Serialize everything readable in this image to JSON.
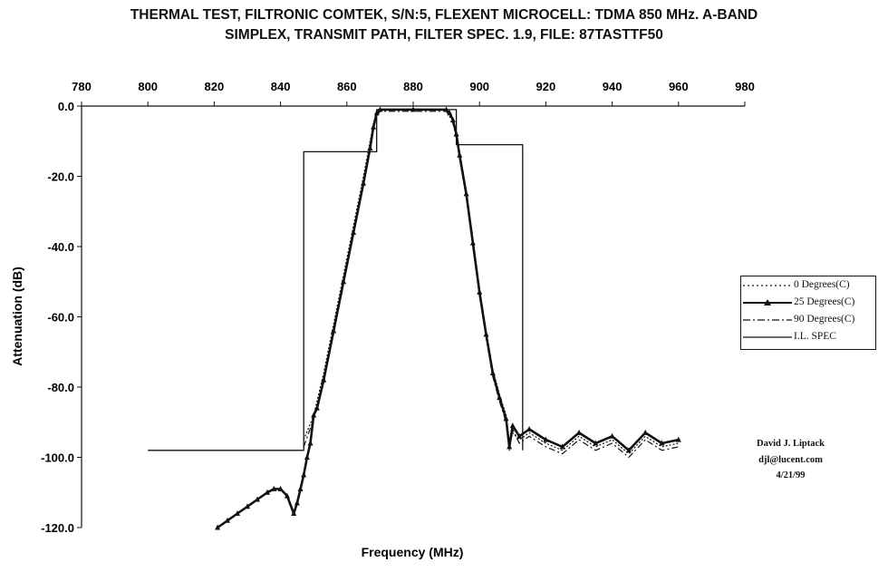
{
  "chart_data": {
    "type": "line",
    "title_line1": "THERMAL TEST, FILTRONIC COMTEK, S/N:5, FLEXENT MICROCELL: TDMA 850 MHz. A-BAND",
    "title_line2": "SIMPLEX, TRANSMIT PATH, FILTER SPEC. 1.9, FILE: 87TASTTF50",
    "xlabel": "Frequency (MHz)",
    "ylabel": "Attenuation (dB)",
    "xlim": [
      780,
      980
    ],
    "ylim": [
      -120,
      0
    ],
    "x_ticks": [
      "780",
      "800",
      "820",
      "840",
      "860",
      "880",
      "900",
      "920",
      "940",
      "960",
      "980"
    ],
    "y_ticks": [
      "0.0",
      "-20.0",
      "-40.0",
      "-60.0",
      "-80.0",
      "-100.0",
      "-120.0"
    ],
    "x_axis_position": "top",
    "grid": false,
    "legend_position": "right",
    "series": [
      {
        "name": "0 Degrees(C)",
        "style": "dotted",
        "x": [
          847,
          850,
          853,
          856,
          859,
          862,
          865,
          867,
          868,
          869,
          870,
          880,
          890,
          891,
          892,
          893,
          894,
          896,
          898,
          900,
          902,
          904,
          906,
          908,
          909,
          910,
          912,
          915,
          920,
          925,
          930,
          935,
          940,
          945,
          950,
          955,
          960
        ],
        "y": [
          -95,
          -88,
          -76,
          -62,
          -48,
          -34,
          -20,
          -10,
          -5,
          -2,
          -1,
          -1,
          -1,
          -2,
          -4,
          -8,
          -13,
          -24,
          -38,
          -52,
          -64,
          -75,
          -82,
          -88,
          -97,
          -93,
          -95,
          -93,
          -96,
          -98,
          -94,
          -97,
          -95,
          -99,
          -94,
          -97,
          -96
        ]
      },
      {
        "name": "25 Degrees(C)",
        "style": "solid-triangle",
        "x": [
          821,
          824,
          827,
          830,
          833,
          836,
          838,
          840,
          842,
          844,
          845,
          846,
          847,
          848,
          849,
          850,
          851,
          853,
          856,
          859,
          862,
          865,
          867,
          868,
          869,
          870,
          880,
          890,
          891,
          892,
          893,
          894,
          896,
          898,
          900,
          902,
          904,
          906,
          908,
          909,
          910,
          912,
          915,
          920,
          925,
          930,
          935,
          940,
          945,
          950,
          955,
          960
        ],
        "y": [
          -120,
          -118,
          -116,
          -114,
          -112,
          -110,
          -109,
          -109,
          -111,
          -116,
          -113,
          -109,
          -105,
          -100,
          -96,
          -88,
          -86,
          -78,
          -64,
          -50,
          -36,
          -22,
          -12,
          -6,
          -2,
          -1,
          -1,
          -1,
          -2,
          -4,
          -8,
          -14,
          -25,
          -39,
          -53,
          -65,
          -76,
          -83,
          -89,
          -97,
          -91,
          -94,
          -92,
          -95,
          -97,
          -93,
          -96,
          -94,
          -98,
          -93,
          -96,
          -95
        ]
      },
      {
        "name": "90 Degrees(C)",
        "style": "dash-dot",
        "x": [
          847,
          850,
          853,
          856,
          859,
          862,
          865,
          867,
          868,
          869,
          870,
          880,
          890,
          891,
          892,
          893,
          894,
          896,
          898,
          900,
          902,
          904,
          906,
          908,
          909,
          910,
          912,
          915,
          920,
          925,
          930,
          935,
          940,
          945,
          950,
          955,
          960
        ],
        "y": [
          -97,
          -89,
          -78,
          -64,
          -50,
          -36,
          -22,
          -12,
          -6,
          -3,
          -1.5,
          -1.5,
          -1.5,
          -3,
          -5,
          -9,
          -15,
          -26,
          -40,
          -54,
          -66,
          -77,
          -84,
          -90,
          -98,
          -92,
          -96,
          -94,
          -97,
          -99,
          -95,
          -98,
          -96,
          -100,
          -95,
          -98,
          -97
        ]
      },
      {
        "name": "I.L. SPEC",
        "style": "solid",
        "x": [
          800,
          847,
          847,
          869,
          869,
          893,
          893,
          913,
          913
        ],
        "y": [
          -98,
          -98,
          -13,
          -13,
          -1,
          -1,
          -11,
          -11,
          -98
        ]
      }
    ]
  },
  "credit": {
    "name": "David J. Liptack",
    "email": "djl@lucent.com",
    "date": "4/21/99"
  }
}
